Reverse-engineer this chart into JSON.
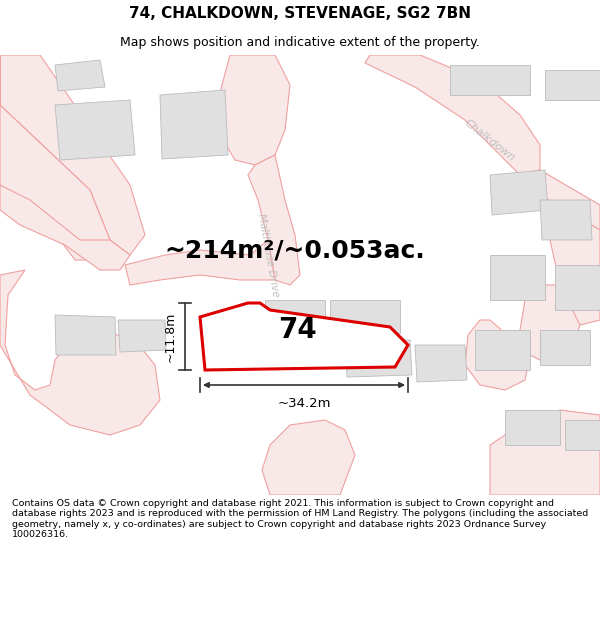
{
  "title": "74, CHALKDOWN, STEVENAGE, SG2 7BN",
  "subtitle": "Map shows position and indicative extent of the property.",
  "footer": "Contains OS data © Crown copyright and database right 2021. This information is subject to Crown copyright and database rights 2023 and is reproduced with the permission of HM Land Registry. The polygons (including the associated geometry, namely x, y co-ordinates) are subject to Crown copyright and database rights 2023 Ordnance Survey 100026316.",
  "area_label": "~214m²/~0.053ac.",
  "width_label": "~34.2m",
  "height_label": "~11.8m",
  "number_label": "74",
  "bg_color": "#ffffff",
  "map_bg": "#ffffff",
  "road_stroke": "#f0a0a0",
  "road_fill": "#f8e8e8",
  "building_fill": "#e0e0e0",
  "building_edge": "#bbbbbb",
  "property_color": "#dd0000",
  "property_fill": "#f5f0f0",
  "dim_color": "#333333",
  "road_label_color": "#bbbbbb",
  "chalkdown_label_color": "#c0c0c0",
  "title_fontsize": 11,
  "subtitle_fontsize": 9,
  "footer_fontsize": 6.8,
  "area_fontsize": 18,
  "number_fontsize": 20
}
